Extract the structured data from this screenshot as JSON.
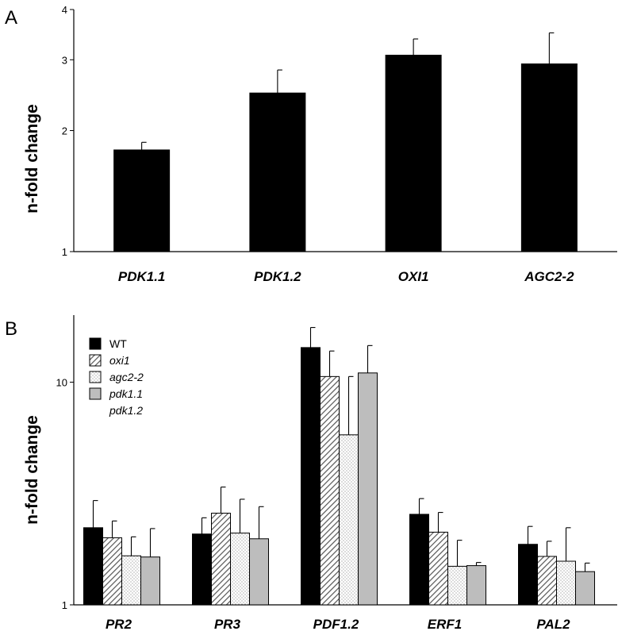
{
  "chart_data": [
    {
      "type": "bar",
      "panel": "A",
      "ylabel": "n-fold change",
      "yscale": "log",
      "ylim": [
        1,
        4
      ],
      "yticks": [
        1,
        2,
        3,
        4
      ],
      "categories": [
        "PDK1.1",
        "PDK1.2",
        "OXI1",
        "AGC2-2"
      ],
      "series": [
        {
          "values": [
            1.79,
            2.48,
            3.08,
            2.93
          ],
          "errors": [
            0.08,
            0.35,
            0.3,
            0.57
          ],
          "color": "#000000"
        }
      ]
    },
    {
      "type": "bar",
      "panel": "B",
      "ylabel": "n-fold change",
      "yscale": "log",
      "ylim": [
        1,
        20
      ],
      "yticks": [
        1,
        10
      ],
      "legend_position": "top-left",
      "categories": [
        "PR2",
        "PR3",
        "PDF1.2",
        "ERF1",
        "PAL2"
      ],
      "series": [
        {
          "name": "WT",
          "pattern": "solid-black",
          "values": [
            2.22,
            2.08,
            14.3,
            2.55,
            1.87
          ],
          "errors": [
            0.72,
            0.38,
            3.3,
            0.45,
            0.38
          ]
        },
        {
          "name": "oxi1",
          "pattern": "hatch",
          "values": [
            2.0,
            2.58,
            10.6,
            2.12,
            1.65
          ],
          "errors": [
            0.38,
            0.8,
            3.2,
            0.48,
            0.28
          ]
        },
        {
          "name": "agc2-2",
          "pattern": "dots",
          "values": [
            1.66,
            2.1,
            5.8,
            1.49,
            1.57
          ],
          "errors": [
            0.36,
            0.88,
            4.8,
            0.46,
            0.65
          ]
        },
        {
          "name": "pdk1.1\npdk1.2",
          "pattern": "solid-gray",
          "values": [
            1.64,
            1.98,
            11.0,
            1.5,
            1.41
          ],
          "errors": [
            0.56,
            0.78,
            3.6,
            0.05,
            0.13
          ]
        }
      ]
    }
  ]
}
